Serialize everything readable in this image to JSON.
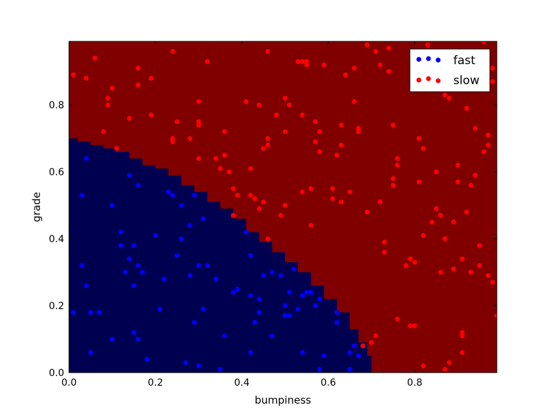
{
  "chart_data": {
    "type": "scatter",
    "title": "",
    "xlabel": "bumpiness",
    "ylabel": "grade",
    "xlim": [
      0.0,
      0.99
    ],
    "ylim": [
      0.0,
      0.99
    ],
    "xticks": [
      "0.0",
      "0.2",
      "0.4",
      "0.6",
      "0.8"
    ],
    "yticks": [
      "0.0",
      "0.2",
      "0.4",
      "0.6",
      "0.8"
    ],
    "xtick_values": [
      0.0,
      0.2,
      0.4,
      0.6,
      0.8
    ],
    "ytick_values": [
      0.0,
      0.2,
      0.4,
      0.6,
      0.8
    ],
    "legend": {
      "placement": "top-right",
      "entries": [
        "fast",
        "slow"
      ]
    },
    "colors": {
      "fast_region": "#000050",
      "slow_region": "#800000",
      "fast_points": "#0000ff",
      "slow_points": "#ff0000"
    },
    "decision_boundary": [
      [
        0.0,
        0.7
      ],
      [
        0.02,
        0.69
      ],
      [
        0.05,
        0.68
      ],
      [
        0.08,
        0.67
      ],
      [
        0.11,
        0.66
      ],
      [
        0.14,
        0.64
      ],
      [
        0.17,
        0.62
      ],
      [
        0.2,
        0.61
      ],
      [
        0.23,
        0.59
      ],
      [
        0.26,
        0.56
      ],
      [
        0.29,
        0.54
      ],
      [
        0.32,
        0.51
      ],
      [
        0.35,
        0.49
      ],
      [
        0.38,
        0.46
      ],
      [
        0.41,
        0.42
      ],
      [
        0.44,
        0.39
      ],
      [
        0.47,
        0.36
      ],
      [
        0.5,
        0.33
      ],
      [
        0.53,
        0.3
      ],
      [
        0.56,
        0.26
      ],
      [
        0.59,
        0.22
      ],
      [
        0.62,
        0.18
      ],
      [
        0.65,
        0.13
      ],
      [
        0.67,
        0.09
      ],
      [
        0.69,
        0.05
      ],
      [
        0.7,
        0.02
      ],
      [
        0.7,
        0.0
      ]
    ],
    "series": [
      {
        "name": "fast",
        "points": [
          [
            0.01,
            0.18
          ],
          [
            0.03,
            0.53
          ],
          [
            0.03,
            0.32
          ],
          [
            0.04,
            0.26
          ],
          [
            0.04,
            0.64
          ],
          [
            0.05,
            0.18
          ],
          [
            0.05,
            0.06
          ],
          [
            0.07,
            0.18
          ],
          [
            0.1,
            0.5
          ],
          [
            0.1,
            0.1
          ],
          [
            0.12,
            0.42
          ],
          [
            0.12,
            0.38
          ],
          [
            0.13,
            0.3
          ],
          [
            0.14,
            0.34
          ],
          [
            0.14,
            0.59
          ],
          [
            0.15,
            0.38
          ],
          [
            0.15,
            0.26
          ],
          [
            0.15,
            0.12
          ],
          [
            0.16,
            0.1
          ],
          [
            0.16,
            0.56
          ],
          [
            0.16,
            0.32
          ],
          [
            0.17,
            0.3
          ],
          [
            0.18,
            0.04
          ],
          [
            0.2,
            0.41
          ],
          [
            0.21,
            0.19
          ],
          [
            0.22,
            0.28
          ],
          [
            0.23,
            0.54
          ],
          [
            0.24,
            0.53
          ],
          [
            0.25,
            0.35
          ],
          [
            0.26,
            0.4
          ],
          [
            0.26,
            0.5
          ],
          [
            0.27,
            0.03
          ],
          [
            0.28,
            0.29
          ],
          [
            0.28,
            0.44
          ],
          [
            0.29,
            0.53
          ],
          [
            0.29,
            0.15
          ],
          [
            0.3,
            0.32
          ],
          [
            0.3,
            0.02
          ],
          [
            0.31,
            0.46
          ],
          [
            0.31,
            0.19
          ],
          [
            0.32,
            0.32
          ],
          [
            0.34,
            0.28
          ],
          [
            0.35,
            0.01
          ],
          [
            0.36,
            0.11
          ],
          [
            0.38,
            0.24
          ],
          [
            0.39,
            0.25
          ],
          [
            0.41,
            0.42
          ],
          [
            0.42,
            0.35
          ],
          [
            0.42,
            0.23
          ],
          [
            0.42,
            0.06
          ],
          [
            0.43,
            0.15
          ],
          [
            0.44,
            0.18
          ],
          [
            0.44,
            0.22
          ],
          [
            0.45,
            0.29
          ],
          [
            0.47,
            0.3
          ],
          [
            0.47,
            0.11
          ],
          [
            0.49,
            0.29
          ],
          [
            0.5,
            0.2
          ],
          [
            0.5,
            0.17
          ],
          [
            0.51,
            0.17
          ],
          [
            0.51,
            0.24
          ],
          [
            0.52,
            0.31
          ],
          [
            0.53,
            0.19
          ],
          [
            0.54,
            0.23
          ],
          [
            0.54,
            0.06
          ],
          [
            0.55,
            0.24
          ],
          [
            0.56,
            0.24
          ],
          [
            0.57,
            0.2
          ],
          [
            0.58,
            0.22
          ],
          [
            0.58,
            0.01
          ],
          [
            0.59,
            0.05
          ],
          [
            0.62,
            0.18
          ],
          [
            0.62,
            0.15
          ],
          [
            0.65,
            0.06
          ],
          [
            0.65,
            0.01
          ],
          [
            0.66,
            0.08
          ],
          [
            0.67,
            0.05
          ]
        ]
      },
      {
        "name": "slow",
        "points": [
          [
            0.01,
            0.89
          ],
          [
            0.04,
            0.88
          ],
          [
            0.06,
            0.94
          ],
          [
            0.08,
            0.72
          ],
          [
            0.09,
            0.82
          ],
          [
            0.09,
            0.8
          ],
          [
            0.1,
            0.85
          ],
          [
            0.11,
            0.67
          ],
          [
            0.14,
            0.76
          ],
          [
            0.16,
            0.86
          ],
          [
            0.16,
            0.91
          ],
          [
            0.19,
            0.88
          ],
          [
            0.19,
            0.77
          ],
          [
            0.24,
            0.96
          ],
          [
            0.24,
            0.7
          ],
          [
            0.24,
            0.69
          ],
          [
            0.25,
            0.75
          ],
          [
            0.28,
            0.7
          ],
          [
            0.3,
            0.75
          ],
          [
            0.3,
            0.74
          ],
          [
            0.3,
            0.81
          ],
          [
            0.3,
            0.64
          ],
          [
            0.32,
            0.93
          ],
          [
            0.34,
            0.64
          ],
          [
            0.35,
            0.61
          ],
          [
            0.36,
            0.72
          ],
          [
            0.36,
            0.65
          ],
          [
            0.37,
            0.6
          ],
          [
            0.38,
            0.47
          ],
          [
            0.38,
            0.55
          ],
          [
            0.39,
            0.53
          ],
          [
            0.41,
            0.81
          ],
          [
            0.42,
            0.61
          ],
          [
            0.42,
            0.53
          ],
          [
            0.43,
            0.52
          ],
          [
            0.44,
            0.8
          ],
          [
            0.44,
            0.49
          ],
          [
            0.45,
            0.67
          ],
          [
            0.45,
            0.51
          ],
          [
            0.46,
            0.7
          ],
          [
            0.46,
            0.68
          ],
          [
            0.46,
            0.96
          ],
          [
            0.46,
            0.4
          ],
          [
            0.48,
            0.77
          ],
          [
            0.49,
            0.47
          ],
          [
            0.5,
            0.72
          ],
          [
            0.5,
            0.82
          ],
          [
            0.5,
            0.5
          ],
          [
            0.51,
            0.8
          ],
          [
            0.53,
            0.93
          ],
          [
            0.54,
            0.93
          ],
          [
            0.54,
            0.77
          ],
          [
            0.54,
            0.54
          ],
          [
            0.55,
            0.92
          ],
          [
            0.55,
            0.93
          ],
          [
            0.56,
            0.44
          ],
          [
            0.56,
            0.55
          ],
          [
            0.57,
            0.69
          ],
          [
            0.57,
            0.75
          ],
          [
            0.58,
            0.66
          ],
          [
            0.58,
            0.72
          ],
          [
            0.59,
            0.92
          ],
          [
            0.61,
            0.55
          ],
          [
            0.61,
            0.52
          ],
          [
            0.62,
            0.65
          ],
          [
            0.63,
            0.68
          ],
          [
            0.63,
            0.51
          ],
          [
            0.63,
            0.74
          ],
          [
            0.64,
            0.89
          ],
          [
            0.65,
            0.54
          ],
          [
            0.66,
            0.81
          ],
          [
            0.66,
            0.91
          ],
          [
            0.67,
            0.72
          ],
          [
            0.67,
            0.73
          ],
          [
            0.68,
            0.08
          ],
          [
            0.69,
            0.98
          ],
          [
            0.69,
            0.48
          ],
          [
            0.7,
            0.09
          ],
          [
            0.71,
            0.96
          ],
          [
            0.71,
            0.11
          ],
          [
            0.72,
            0.51
          ],
          [
            0.72,
            0.92
          ],
          [
            0.73,
            0.36
          ],
          [
            0.73,
            0.39
          ],
          [
            0.74,
            0.97
          ],
          [
            0.74,
            0.9
          ],
          [
            0.75,
            0.74
          ],
          [
            0.75,
            0.56
          ],
          [
            0.75,
            0.58
          ],
          [
            0.76,
            0.62
          ],
          [
            0.76,
            0.64
          ],
          [
            0.76,
            0.16
          ],
          [
            0.78,
            0.32
          ],
          [
            0.79,
            0.34
          ],
          [
            0.79,
            0.14
          ],
          [
            0.8,
            0.33
          ],
          [
            0.8,
            0.14
          ],
          [
            0.81,
            0.7
          ],
          [
            0.81,
            0.57
          ],
          [
            0.82,
            0.67
          ],
          [
            0.82,
            0.02
          ],
          [
            0.82,
            0.41
          ],
          [
            0.83,
            0.98
          ],
          [
            0.84,
            0.45
          ],
          [
            0.85,
            0.6
          ],
          [
            0.85,
            0.49
          ],
          [
            0.86,
            0.3
          ],
          [
            0.86,
            0.47
          ],
          [
            0.87,
            0.83
          ],
          [
            0.87,
            0.01
          ],
          [
            0.87,
            0.4
          ],
          [
            0.88,
            0.82
          ],
          [
            0.88,
            0.03
          ],
          [
            0.89,
            0.45
          ],
          [
            0.89,
            0.31
          ],
          [
            0.9,
            0.57
          ],
          [
            0.9,
            0.62
          ],
          [
            0.91,
            0.34
          ],
          [
            0.91,
            0.11
          ],
          [
            0.91,
            0.12
          ],
          [
            0.91,
            0.06
          ],
          [
            0.92,
            0.79
          ],
          [
            0.92,
            0.48
          ],
          [
            0.93,
            0.56
          ],
          [
            0.93,
            0.3
          ],
          [
            0.94,
            0.59
          ],
          [
            0.94,
            0.73
          ],
          [
            0.95,
            0.32
          ],
          [
            0.95,
            0.38
          ],
          [
            0.96,
            0.66
          ],
          [
            0.96,
            0.99
          ],
          [
            0.97,
            0.29
          ],
          [
            0.97,
            0.68
          ],
          [
            0.97,
            0.71
          ],
          [
            0.98,
            0.91
          ],
          [
            0.98,
            0.87
          ],
          [
            0.98,
            0.27
          ],
          [
            0.99,
            0.17
          ]
        ]
      }
    ]
  }
}
